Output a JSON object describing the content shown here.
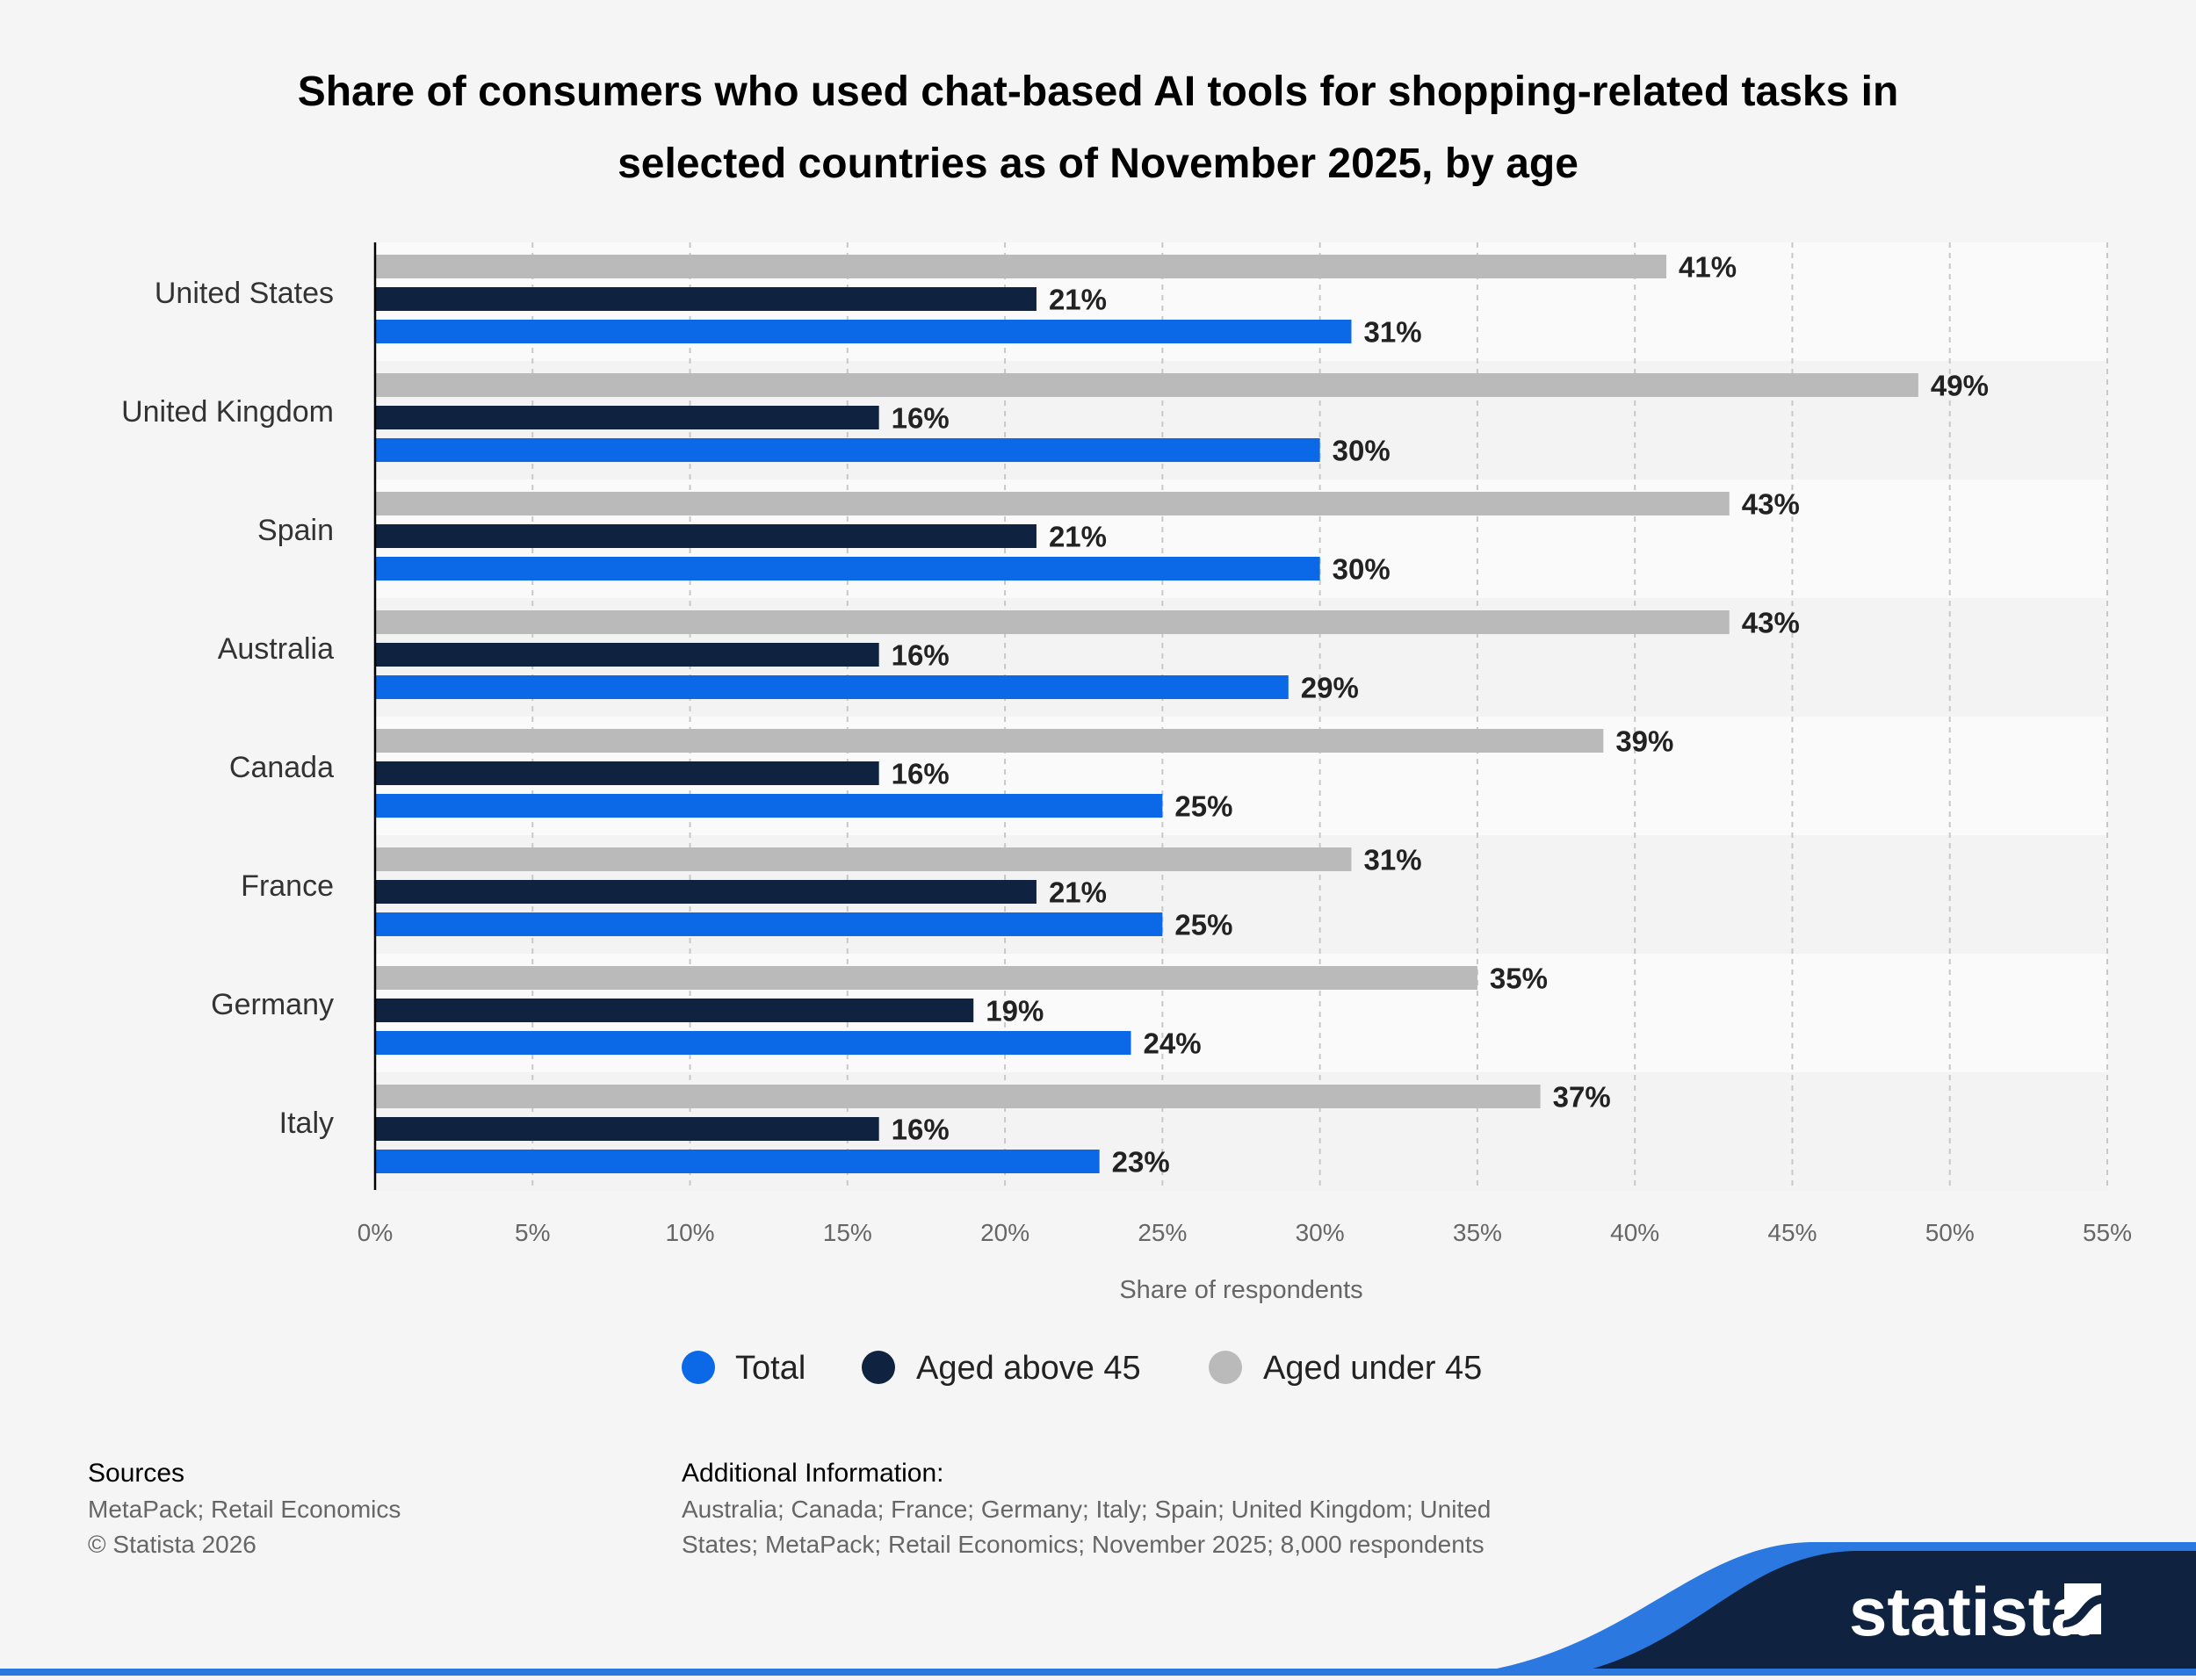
{
  "colors": {
    "total": "#0b68e6",
    "above45": "#0f2340",
    "under45": "#bababa",
    "background": "#f5f5f5"
  },
  "chart_data": {
    "type": "bar",
    "orientation": "horizontal",
    "title": "Share of consumers who used chat-based AI tools for shopping-related tasks in selected countries as of November 2025, by age",
    "title_lines": [
      "Share of consumers who used chat-based AI tools for shopping-related tasks in",
      "selected countries as of November 2025, by age"
    ],
    "categories": [
      "United States",
      "United Kingdom",
      "Spain",
      "Australia",
      "Canada",
      "France",
      "Germany",
      "Italy"
    ],
    "series": [
      {
        "name": "Aged under 45",
        "color": "#bababa",
        "values": [
          41,
          49,
          43,
          43,
          39,
          31,
          35,
          37
        ]
      },
      {
        "name": "Aged above 45",
        "color": "#0f2340",
        "values": [
          21,
          16,
          21,
          16,
          16,
          21,
          19,
          16
        ]
      },
      {
        "name": "Total",
        "color": "#0b68e6",
        "values": [
          31,
          30,
          30,
          29,
          25,
          25,
          24,
          23
        ]
      }
    ],
    "value_suffix": "%",
    "xlabel": "Share of respondents",
    "ylabel": "",
    "xlim": [
      0,
      55
    ],
    "ticks": [
      "0%",
      "5%",
      "10%",
      "15%",
      "20%",
      "25%",
      "30%",
      "35%",
      "40%",
      "45%",
      "50%",
      "55%"
    ],
    "grid": true,
    "legend_position": "bottom",
    "legend": [
      "Total",
      "Aged above 45",
      "Aged under 45"
    ]
  },
  "footer": {
    "sources_heading": "Sources",
    "sources_text": "MetaPack; Retail Economics",
    "copyright": "© Statista 2026",
    "additional_heading": "Additional Information:",
    "additional_lines": [
      "Australia; Canada; France; Germany; Italy; Spain; United Kingdom; United",
      "States; MetaPack; Retail Economics; November 2025; 8,000 respondents"
    ]
  },
  "logo": {
    "text": "statista"
  }
}
